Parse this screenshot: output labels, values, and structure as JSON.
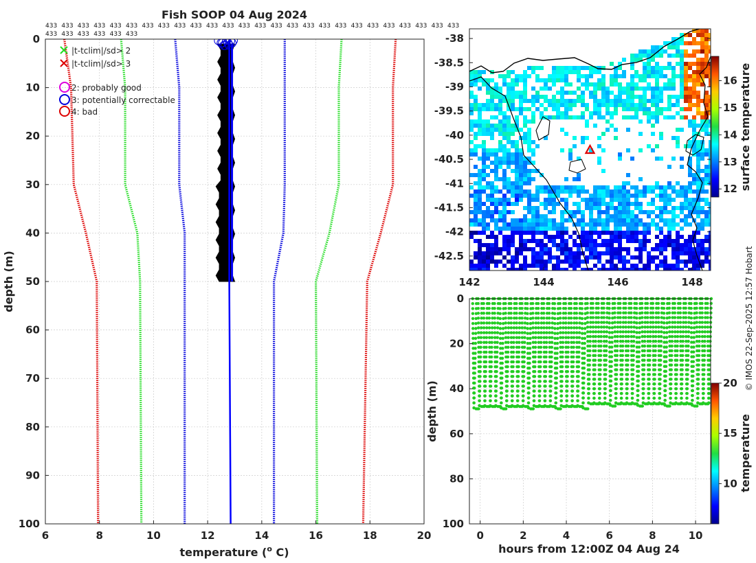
{
  "profile_chart": {
    "type": "line",
    "title": "Fish SOOP 04 Aug 2024",
    "xlabel": "temperature (",
    "xlabel_sup": "o",
    "xlabel_tail": " C)",
    "ylabel": "depth (m)",
    "xlim": [
      6,
      20
    ],
    "ylim": [
      0,
      100
    ],
    "xticks": [
      "6",
      "8",
      "10",
      "12",
      "14",
      "16",
      "18",
      "20"
    ],
    "yticks": [
      "0",
      "10",
      "20",
      "30",
      "40",
      "50",
      "60",
      "70",
      "80",
      "90",
      "100"
    ],
    "count_labels_row1": [
      "433",
      "433",
      "433",
      "433",
      "433",
      "433",
      "433",
      "433",
      "433",
      "433",
      "433",
      "433",
      "433",
      "433",
      "433",
      "433",
      "433",
      "433",
      "433",
      "433",
      "433",
      "433",
      "433",
      "433",
      "433",
      "433"
    ],
    "count_labels_row2": [
      "433",
      "433",
      "433",
      "433",
      "433",
      "433"
    ],
    "legend": {
      "x2": "|t-tclim|/sd> 2",
      "x3": "|t-tclim|/sd> 3",
      "q2": "2: probably good",
      "q3": "3: potentially correctable",
      "q4": "4: bad"
    },
    "series": [
      {
        "name": "clim -3sd",
        "color": "#dd0000",
        "points": [
          [
            6.7,
            0
          ],
          [
            6.95,
            10
          ],
          [
            7.05,
            30
          ],
          [
            7.5,
            40
          ],
          [
            7.9,
            50
          ],
          [
            7.95,
            100
          ]
        ]
      },
      {
        "name": "clim -2sd",
        "color": "#22dd22",
        "points": [
          [
            8.8,
            0
          ],
          [
            8.95,
            10
          ],
          [
            8.95,
            30
          ],
          [
            9.4,
            40
          ],
          [
            9.5,
            50
          ],
          [
            9.55,
            100
          ]
        ]
      },
      {
        "name": "clim -1sd",
        "color": "#0000dd",
        "points": [
          [
            10.8,
            0
          ],
          [
            10.95,
            10
          ],
          [
            10.95,
            30
          ],
          [
            11.15,
            40
          ],
          [
            11.15,
            50
          ],
          [
            11.15,
            100
          ]
        ]
      },
      {
        "name": "clim +1sd",
        "color": "#0000dd",
        "points": [
          [
            14.85,
            0
          ],
          [
            14.85,
            10
          ],
          [
            14.85,
            30
          ],
          [
            14.8,
            40
          ],
          [
            14.45,
            50
          ],
          [
            14.45,
            100
          ]
        ]
      },
      {
        "name": "clim +2sd",
        "color": "#22dd22",
        "points": [
          [
            16.95,
            0
          ],
          [
            16.85,
            10
          ],
          [
            16.85,
            30
          ],
          [
            16.5,
            40
          ],
          [
            16.0,
            50
          ],
          [
            16.05,
            100
          ]
        ]
      },
      {
        "name": "clim +3sd",
        "color": "#dd0000",
        "points": [
          [
            18.95,
            0
          ],
          [
            18.85,
            10
          ],
          [
            18.85,
            30
          ],
          [
            18.4,
            40
          ],
          [
            17.9,
            50
          ],
          [
            17.75,
            100
          ]
        ]
      }
    ],
    "profile_envelope": {
      "color": "#000000",
      "left": [
        [
          12.45,
          1
        ],
        [
          12.45,
          50
        ]
      ],
      "right": [
        [
          12.95,
          1
        ],
        [
          12.95,
          50
        ]
      ]
    },
    "profile_line": {
      "color": "#0000ff",
      "points": [
        [
          12.8,
          0
        ],
        [
          12.8,
          50
        ],
        [
          12.85,
          100
        ]
      ]
    }
  },
  "map_chart": {
    "type": "heatmap",
    "xlim": [
      142,
      148.5
    ],
    "ylim": [
      -42.8,
      -37.8
    ],
    "xticks": [
      "142",
      "144",
      "146",
      "148"
    ],
    "yticks": [
      "-38",
      "-38.5",
      "-39",
      "-39.5",
      "-40",
      "-40.5",
      "-41",
      "-41.5",
      "-42",
      "-42.5"
    ],
    "colorbar": {
      "label": "surface temperature",
      "range": [
        11.7,
        16.9
      ],
      "ticks": [
        "12",
        "13",
        "14",
        "15",
        "16"
      ]
    },
    "marker": {
      "lon": 145.25,
      "lat": -40.3,
      "color": "#dd0000"
    }
  },
  "time_chart": {
    "type": "scatter",
    "xlabel": "hours from 12:00Z 04 Aug 24",
    "ylabel": "depth (m)",
    "xlim": [
      -0.5,
      10.7
    ],
    "ylim": [
      0,
      100
    ],
    "xticks": [
      "0",
      "2",
      "4",
      "6",
      "8",
      "10"
    ],
    "yticks": [
      "0",
      "20",
      "40",
      "60",
      "80",
      "100"
    ],
    "casts": 44,
    "max_depth": 49,
    "color": "#22cc22",
    "colorbar": {
      "label": "temperature",
      "range": [
        6,
        20
      ],
      "ticks": [
        "10",
        "15",
        "20"
      ]
    }
  },
  "credit": "© IMOS 22-Sep-2025 12:57 Hobart"
}
